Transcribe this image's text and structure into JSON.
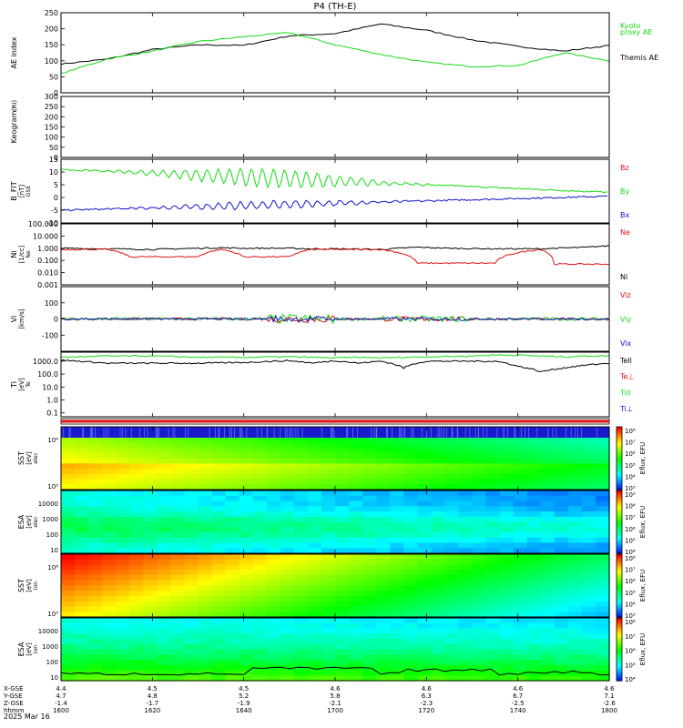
{
  "title": "P4 (TH-E)",
  "date_label": "2025 Mar 16",
  "footer_row_labels": [
    "X-GSE",
    "Y-GSE",
    "Z-GSE",
    "hhmm"
  ],
  "footer_columns": [
    [
      "4.4",
      "4.7",
      "-1.4",
      "1600"
    ],
    [
      "4.5",
      "4.8",
      "-1.7",
      "1620"
    ],
    [
      "4.5",
      "5.2",
      "-1.9",
      "1640"
    ],
    [
      "4.6",
      "5.8",
      "-2.1",
      "1700"
    ],
    [
      "4.6",
      "6.3",
      "-2.3",
      "1720"
    ],
    [
      "4.6",
      "6.7",
      "-2.5",
      "1740"
    ],
    [
      "4.6",
      "7.1",
      "-2.6",
      "1800"
    ]
  ],
  "colors": {
    "green": "#11dd11",
    "black": "#000000",
    "red": "#dd1111",
    "blue": "#1111cc",
    "frame": "#000000"
  },
  "chart_data": [
    {
      "type": "line",
      "panel": "ae",
      "ylabel": "AE index",
      "ylim": [
        0,
        250
      ],
      "yticks": [
        "0",
        "50",
        "100",
        "150",
        "200",
        "250"
      ],
      "x_minutes": [
        0,
        10,
        20,
        30,
        40,
        50,
        60,
        70,
        80,
        90,
        100,
        110,
        120
      ],
      "series": [
        {
          "name": "Themis AE",
          "color": "black",
          "values": [
            90,
            105,
            135,
            150,
            148,
            178,
            185,
            215,
            195,
            165,
            145,
            130,
            148
          ]
        },
        {
          "name": "Kyoto proxy AE",
          "color": "green",
          "values": [
            60,
            105,
            130,
            160,
            175,
            188,
            150,
            120,
            95,
            82,
            85,
            125,
            100
          ]
        }
      ],
      "legend_labels": [
        {
          "text": "Kyoto",
          "color": "green"
        },
        {
          "text": "proxy AE",
          "color": "green"
        },
        {
          "text": "Themis AE",
          "color": "black"
        }
      ]
    },
    {
      "type": "line",
      "panel": "keogram",
      "ylabel_top": "(Ri)",
      "ylabel": "Keogram",
      "ylim": [
        0,
        300
      ],
      "yticks": [
        "0",
        "50",
        "100",
        "150",
        "200",
        "250",
        "300"
      ],
      "series": []
    },
    {
      "type": "line",
      "panel": "bfield",
      "ylabel": "B_FIT",
      "ylabel_sub": "[nT]",
      "ylabel_coord": "GSE",
      "ylim": [
        -10,
        15
      ],
      "yticks": [
        "-10",
        "-5",
        "0",
        "5",
        "10",
        "15"
      ],
      "series": [
        {
          "name": "Bz",
          "color": "red",
          "values": []
        },
        {
          "name": "By",
          "color": "green",
          "trend": [
            11,
            2
          ],
          "wave_amplitude": 3.5
        },
        {
          "name": "Bx",
          "color": "blue",
          "trend": [
            -5,
            0.5
          ],
          "wave_amplitude": 1.5
        }
      ],
      "legend_labels": [
        {
          "text": "Bz",
          "color": "red"
        },
        {
          "text": "By",
          "color": "green"
        },
        {
          "text": "Bx",
          "color": "blue"
        }
      ]
    },
    {
      "type": "line",
      "panel": "density",
      "ylabel": "Ni",
      "ylabel_sub": "[1/cc]",
      "ylabel_coord": "Ne",
      "scale": "log",
      "ylim": [
        0.001,
        100
      ],
      "yticks": [
        "0.001",
        "0.010",
        "0.100",
        "1.000",
        "10.000",
        "100.000"
      ],
      "x_minutes": [
        0,
        10,
        15,
        20,
        30,
        35,
        40,
        50,
        55,
        60,
        70,
        78,
        85,
        95,
        105,
        108,
        115,
        120
      ],
      "series": [
        {
          "name": "Ni",
          "color": "black",
          "values": [
            1.0,
            0.9,
            0.85,
            0.8,
            1.0,
            1.1,
            1.0,
            1.0,
            0.9,
            0.9,
            0.8,
            1.2,
            1.0,
            0.9,
            0.9,
            1.0,
            1.2,
            1.6
          ]
        },
        {
          "name": "Ne",
          "color": "red",
          "values": [
            0.8,
            0.8,
            0.2,
            0.2,
            0.2,
            0.8,
            0.2,
            0.2,
            0.8,
            0.8,
            0.8,
            0.06,
            0.06,
            0.06,
            0.8,
            0.05,
            0.05,
            0.05
          ]
        }
      ],
      "legend_labels": [
        {
          "text": "Ne",
          "color": "red"
        },
        {
          "text": "Ni",
          "color": "black"
        }
      ]
    },
    {
      "type": "line",
      "panel": "velocity",
      "ylabel": "Vi",
      "ylabel_sub": "[km/s]",
      "ylim": [
        -200,
        200
      ],
      "yticks": [
        "-100",
        "0",
        "100"
      ],
      "series": [
        {
          "name": "Viz",
          "color": "red",
          "noise": 8
        },
        {
          "name": "Viy",
          "color": "green",
          "noise": 10
        },
        {
          "name": "Vix",
          "color": "blue",
          "noise": 6
        }
      ],
      "legend_labels": [
        {
          "text": "Viz",
          "color": "red"
        },
        {
          "text": "Viy",
          "color": "green"
        },
        {
          "text": "Vix",
          "color": "blue"
        }
      ]
    },
    {
      "type": "line",
      "panel": "temperature",
      "ylabel": "Ti",
      "ylabel_sub": "[eV]",
      "ylabel_coord": "Te",
      "scale": "log",
      "ylim": [
        0.05,
        5000
      ],
      "yticks": [
        "0.1",
        "1.0",
        "10.0",
        "100.0",
        "1000.0"
      ],
      "x_minutes": [
        0,
        10,
        20,
        25,
        30,
        40,
        50,
        55,
        60,
        65,
        70,
        75,
        80,
        90,
        95,
        100,
        105,
        110,
        115,
        120
      ],
      "series": [
        {
          "name": "Tell",
          "color": "black",
          "values": [
            1200,
            700,
            700,
            700,
            700,
            800,
            1100,
            700,
            1100,
            700,
            1000,
            300,
            1000,
            1000,
            1000,
            400,
            150,
            300,
            500,
            700
          ]
        },
        {
          "name": "Te⊥",
          "color": "red",
          "values": []
        },
        {
          "name": "Till",
          "color": "green",
          "values": [
            2000,
            2500,
            2500,
            2300,
            2000,
            2000,
            2200,
            2000,
            1800,
            2000,
            1800,
            2000,
            2200,
            2500,
            3000,
            3000,
            2500,
            2200,
            2500,
            2600
          ]
        },
        {
          "name": "Ti⊥",
          "color": "blue",
          "values": []
        }
      ],
      "legend_labels": [
        {
          "text": "Tell",
          "color": "black"
        },
        {
          "text": "Te⊥",
          "color": "red"
        },
        {
          "text": "Till",
          "color": "green"
        },
        {
          "text": "Ti⊥",
          "color": "blue"
        }
      ]
    },
    {
      "type": "heatmap",
      "panel": "sst_electron",
      "ylabel": "SST",
      "ylabel_sub": "[eV]",
      "ylabel_coord": "elec",
      "scale": "log",
      "yticks": [
        "10⁶",
        "10⁵"
      ],
      "colorbar_label": "Eflux, EFU",
      "colorbar_ticks": [
        "10⁸",
        "10⁷",
        "10⁶",
        "10⁵",
        "10⁴",
        "10³"
      ]
    },
    {
      "type": "heatmap",
      "panel": "esa_electron",
      "ylabel": "ESA",
      "ylabel_sub": "[eV]",
      "ylabel_coord": "elec",
      "scale": "log",
      "yticks": [
        "10000",
        "1000",
        "100",
        "10"
      ],
      "colorbar_label": "Eflux, EFU",
      "colorbar_ticks": [
        "10⁹",
        "10⁸",
        "10⁷",
        "10⁶",
        "10⁵",
        "10⁴"
      ]
    },
    {
      "type": "heatmap",
      "panel": "sst_ion",
      "ylabel": "SST",
      "ylabel_sub": "[eV]",
      "ylabel_coord": "ion",
      "scale": "log",
      "yticks": [
        "10⁶",
        "10⁵"
      ],
      "colorbar_label": "Eflux, EFU",
      "colorbar_ticks": [
        "10⁸",
        "10⁷",
        "10⁶",
        "10⁵",
        "10⁴",
        "10³"
      ]
    },
    {
      "type": "heatmap",
      "panel": "esa_ion",
      "ylabel": "ESA",
      "ylabel_sub": "[eV]",
      "ylabel_coord": "ion",
      "scale": "log",
      "yticks": [
        "10000",
        "1000",
        "100",
        "10"
      ],
      "colorbar_label": "Eflux, EFU",
      "colorbar_ticks": [
        "10⁸",
        "10⁷",
        "10⁶",
        "10⁵",
        "10⁴"
      ]
    }
  ]
}
